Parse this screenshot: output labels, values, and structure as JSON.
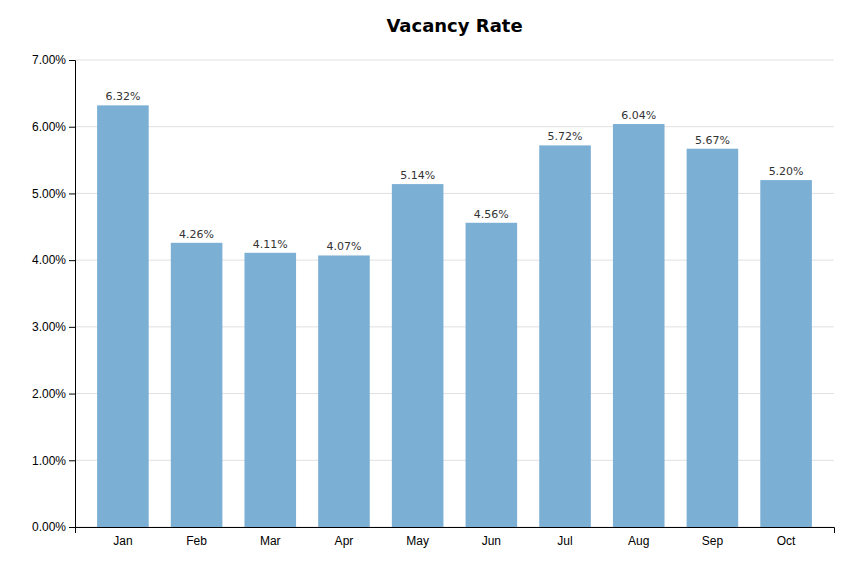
{
  "chart_data": {
    "type": "bar",
    "title": "Vacancy Rate",
    "categories": [
      "Jan",
      "Feb",
      "Mar",
      "Apr",
      "May",
      "Jun",
      "Jul",
      "Aug",
      "Sep",
      "Oct"
    ],
    "values": [
      6.32,
      4.26,
      4.11,
      4.07,
      5.14,
      4.56,
      5.72,
      6.04,
      5.67,
      5.2
    ],
    "value_labels": [
      "6.32%",
      "4.26%",
      "4.11%",
      "4.07%",
      "5.14%",
      "4.56%",
      "5.72%",
      "6.04%",
      "5.67%",
      "5.20%"
    ],
    "color": "#7BAFD4",
    "ylim": [
      0,
      7.0
    ],
    "yticks": [
      {
        "value": 0.0,
        "label": "0.00%"
      },
      {
        "value": 1.0,
        "label": "1.00%"
      },
      {
        "value": 2.0,
        "label": "2.00%"
      },
      {
        "value": 3.0,
        "label": "3.00%"
      },
      {
        "value": 4.0,
        "label": "4.00%"
      },
      {
        "value": 5.0,
        "label": "5.00%"
      },
      {
        "value": 6.0,
        "label": "6.00%"
      },
      {
        "value": 7.0,
        "label": "7.00%"
      }
    ],
    "grid": true
  }
}
